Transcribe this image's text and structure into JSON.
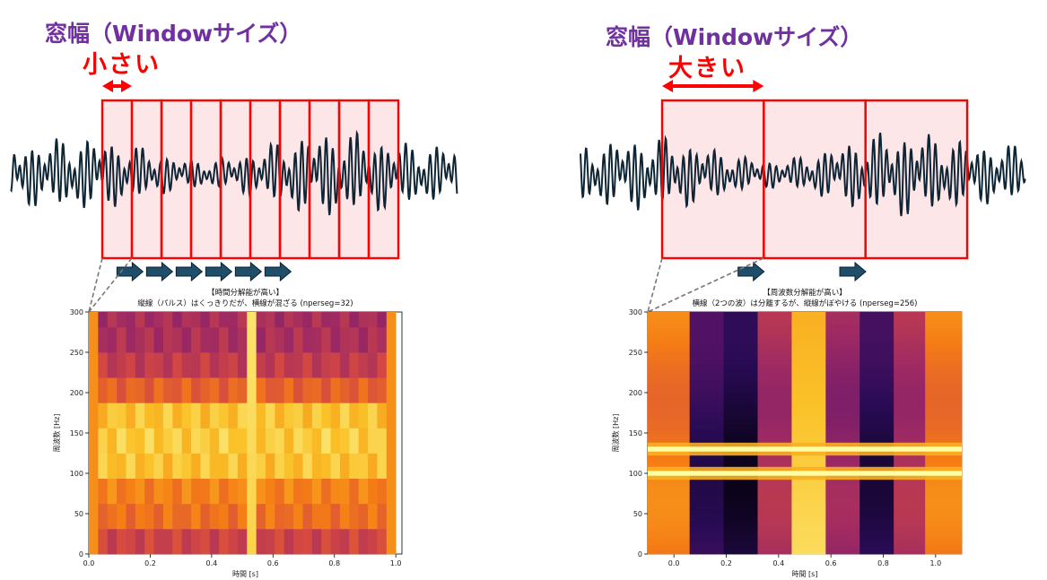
{
  "left": {
    "heading": "窓幅（Windowサイズ）",
    "size_label": "小さい",
    "window_count": 10,
    "arrow_count": 6,
    "chart_data": {
      "type": "heatmap",
      "title": "【時間分解能が高い】",
      "subtitle": "縦線（パルス）はくっきりだが、横線が混ざる (nperseg=32)",
      "xlabel": "時間 [s]",
      "ylabel": "周波数 [Hz]",
      "xlim": [
        0.0,
        1.02
      ],
      "ylim": [
        0,
        300
      ],
      "xticks": [
        "0.0",
        "0.2",
        "0.4",
        "0.6",
        "0.8",
        "1.0"
      ],
      "yticks": [
        "0",
        "50",
        "100",
        "150",
        "200",
        "250",
        "300"
      ],
      "colormap": "inferno",
      "freq_bins": [
        0,
        31.25,
        62.5,
        93.75,
        125,
        156.25,
        187.5,
        218.75,
        250,
        281.25,
        300
      ],
      "freq_profile": [
        0.55,
        0.68,
        0.72,
        0.86,
        0.88,
        0.86,
        0.64,
        0.52,
        0.46,
        0.45
      ],
      "pulse_time": 0.52
    }
  },
  "right": {
    "heading": "窓幅（Windowサイズ）",
    "size_label": "大きい",
    "window_count": 3,
    "arrow_count": 2,
    "chart_data": {
      "type": "heatmap",
      "title": "【周波数分解能が高い】",
      "subtitle": "横線（2つの波）は分離するが、縦線がぼやける (nperseg=256)",
      "xlabel": "時間 [s]",
      "ylabel": "周波数 [Hz]",
      "xlim": [
        -0.1,
        1.1
      ],
      "ylim": [
        0,
        300
      ],
      "xticks": [
        "0.0",
        "0.2",
        "0.4",
        "0.6",
        "0.8",
        "1.0"
      ],
      "yticks": [
        "0",
        "50",
        "100",
        "150",
        "200",
        "250",
        "300"
      ],
      "colormap": "inferno",
      "time_columns": [
        -0.1,
        0.06,
        0.19,
        0.32,
        0.45,
        0.58,
        0.71,
        0.84,
        0.96,
        1.1
      ],
      "column_levels": [
        0.7,
        0.18,
        0.1,
        0.45,
        0.85,
        0.4,
        0.15,
        0.45,
        0.7
      ],
      "tones_hz": [
        100,
        130
      ],
      "pulse_time": 0.52
    }
  },
  "colors": {
    "window_border": "#ff0000",
    "window_fill": "#fde6e8",
    "signal": "#0d2535",
    "step_arrow": "#1f4e6b",
    "dashed_guide": "#777777"
  }
}
